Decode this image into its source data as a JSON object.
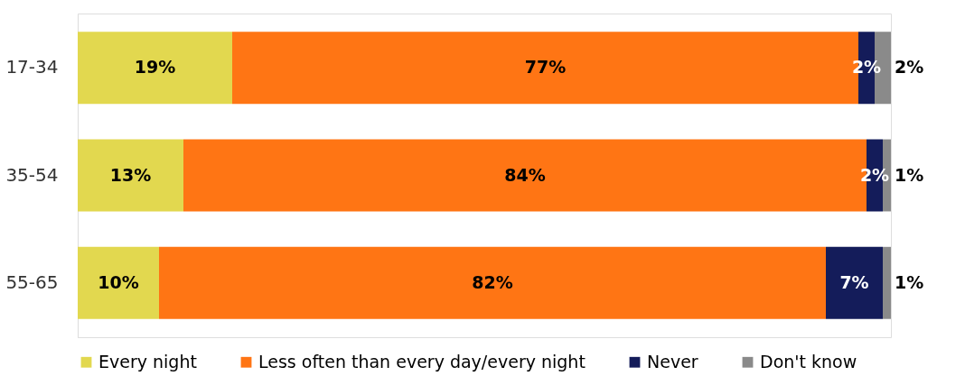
{
  "chart_data": {
    "type": "bar",
    "orientation": "horizontal",
    "stacked": true,
    "categories": [
      "17-34",
      "35-54",
      "55-65"
    ],
    "series": [
      {
        "name": "Every night",
        "color": "#e2d84f",
        "values": [
          19,
          13,
          10
        ],
        "value_labels": [
          "19%",
          "13%",
          "10%"
        ]
      },
      {
        "name": "Less often than every day/every night",
        "color": "#ff7514",
        "values": [
          77,
          84,
          82
        ],
        "value_labels": [
          "77%",
          "84%",
          "82%"
        ]
      },
      {
        "name": "Never",
        "color": "#141c5a",
        "values": [
          2,
          2,
          7
        ],
        "value_labels": [
          "2%",
          "2%",
          "7%"
        ]
      },
      {
        "name": "Don't know",
        "color": "#8a8a8a",
        "values": [
          2,
          1,
          1
        ],
        "value_labels": [
          "2%",
          "1%",
          "1%"
        ]
      }
    ],
    "legend": "bottom",
    "tick_labels": "y",
    "grid": false
  }
}
